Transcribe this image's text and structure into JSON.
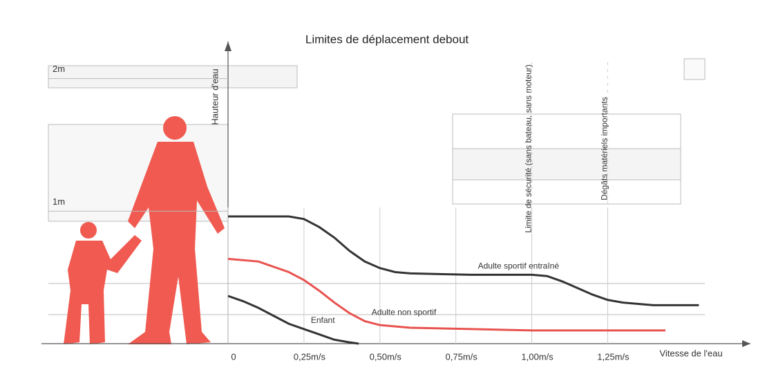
{
  "chart_data": {
    "type": "line",
    "title": "Limites de déplacement debout",
    "y_label": "Hauteur d'eau",
    "x_label": "Vitesse de l'eau",
    "xlim": [
      0,
      1.72
    ],
    "ylim": [
      0,
      2.28
    ],
    "xticks": [
      {
        "value": 0,
        "label": "0"
      },
      {
        "value": 0.25,
        "label": "0,25m/s"
      },
      {
        "value": 0.5,
        "label": "0,50m/s"
      },
      {
        "value": 0.75,
        "label": "0,75m/s"
      },
      {
        "value": 1.0,
        "label": "1,00m/s"
      },
      {
        "value": 1.25,
        "label": "1,25m/s"
      }
    ],
    "yticks": [
      {
        "value": 1,
        "label": "1m"
      },
      {
        "value": 2,
        "label": "2m"
      }
    ],
    "annotations": [
      {
        "text": "Limite de sécurité (sans bateau, sans moteur)",
        "x": 1.0
      },
      {
        "text": "Dégâts matériels importants",
        "x": 1.25
      }
    ],
    "series": [
      {
        "name": "Adulte sportif entraîné",
        "color": "#333333",
        "x": [
          0,
          0.2,
          0.25,
          0.3,
          0.35,
          0.4,
          0.45,
          0.5,
          0.55,
          0.6,
          0.8,
          1.0,
          1.05,
          1.1,
          1.15,
          1.2,
          1.25,
          1.3,
          1.4,
          1.55
        ],
        "values": [
          0.96,
          0.96,
          0.94,
          0.88,
          0.8,
          0.7,
          0.62,
          0.57,
          0.54,
          0.53,
          0.52,
          0.52,
          0.51,
          0.47,
          0.42,
          0.37,
          0.33,
          0.31,
          0.29,
          0.29
        ]
      },
      {
        "name": "Adulte non sportif",
        "color": "#e8534f",
        "x": [
          0,
          0.1,
          0.2,
          0.25,
          0.3,
          0.35,
          0.4,
          0.45,
          0.5,
          0.6,
          0.8,
          1.0,
          1.2,
          1.44
        ],
        "values": [
          0.64,
          0.62,
          0.54,
          0.48,
          0.4,
          0.31,
          0.23,
          0.17,
          0.14,
          0.12,
          0.11,
          0.1,
          0.1,
          0.1
        ]
      },
      {
        "name": "Enfant",
        "color": "#333333",
        "x": [
          0,
          0.05,
          0.1,
          0.15,
          0.2,
          0.25,
          0.3,
          0.35,
          0.4,
          0.43
        ],
        "values": [
          0.36,
          0.32,
          0.27,
          0.21,
          0.15,
          0.11,
          0.07,
          0.03,
          0.01,
          0
        ]
      }
    ]
  }
}
